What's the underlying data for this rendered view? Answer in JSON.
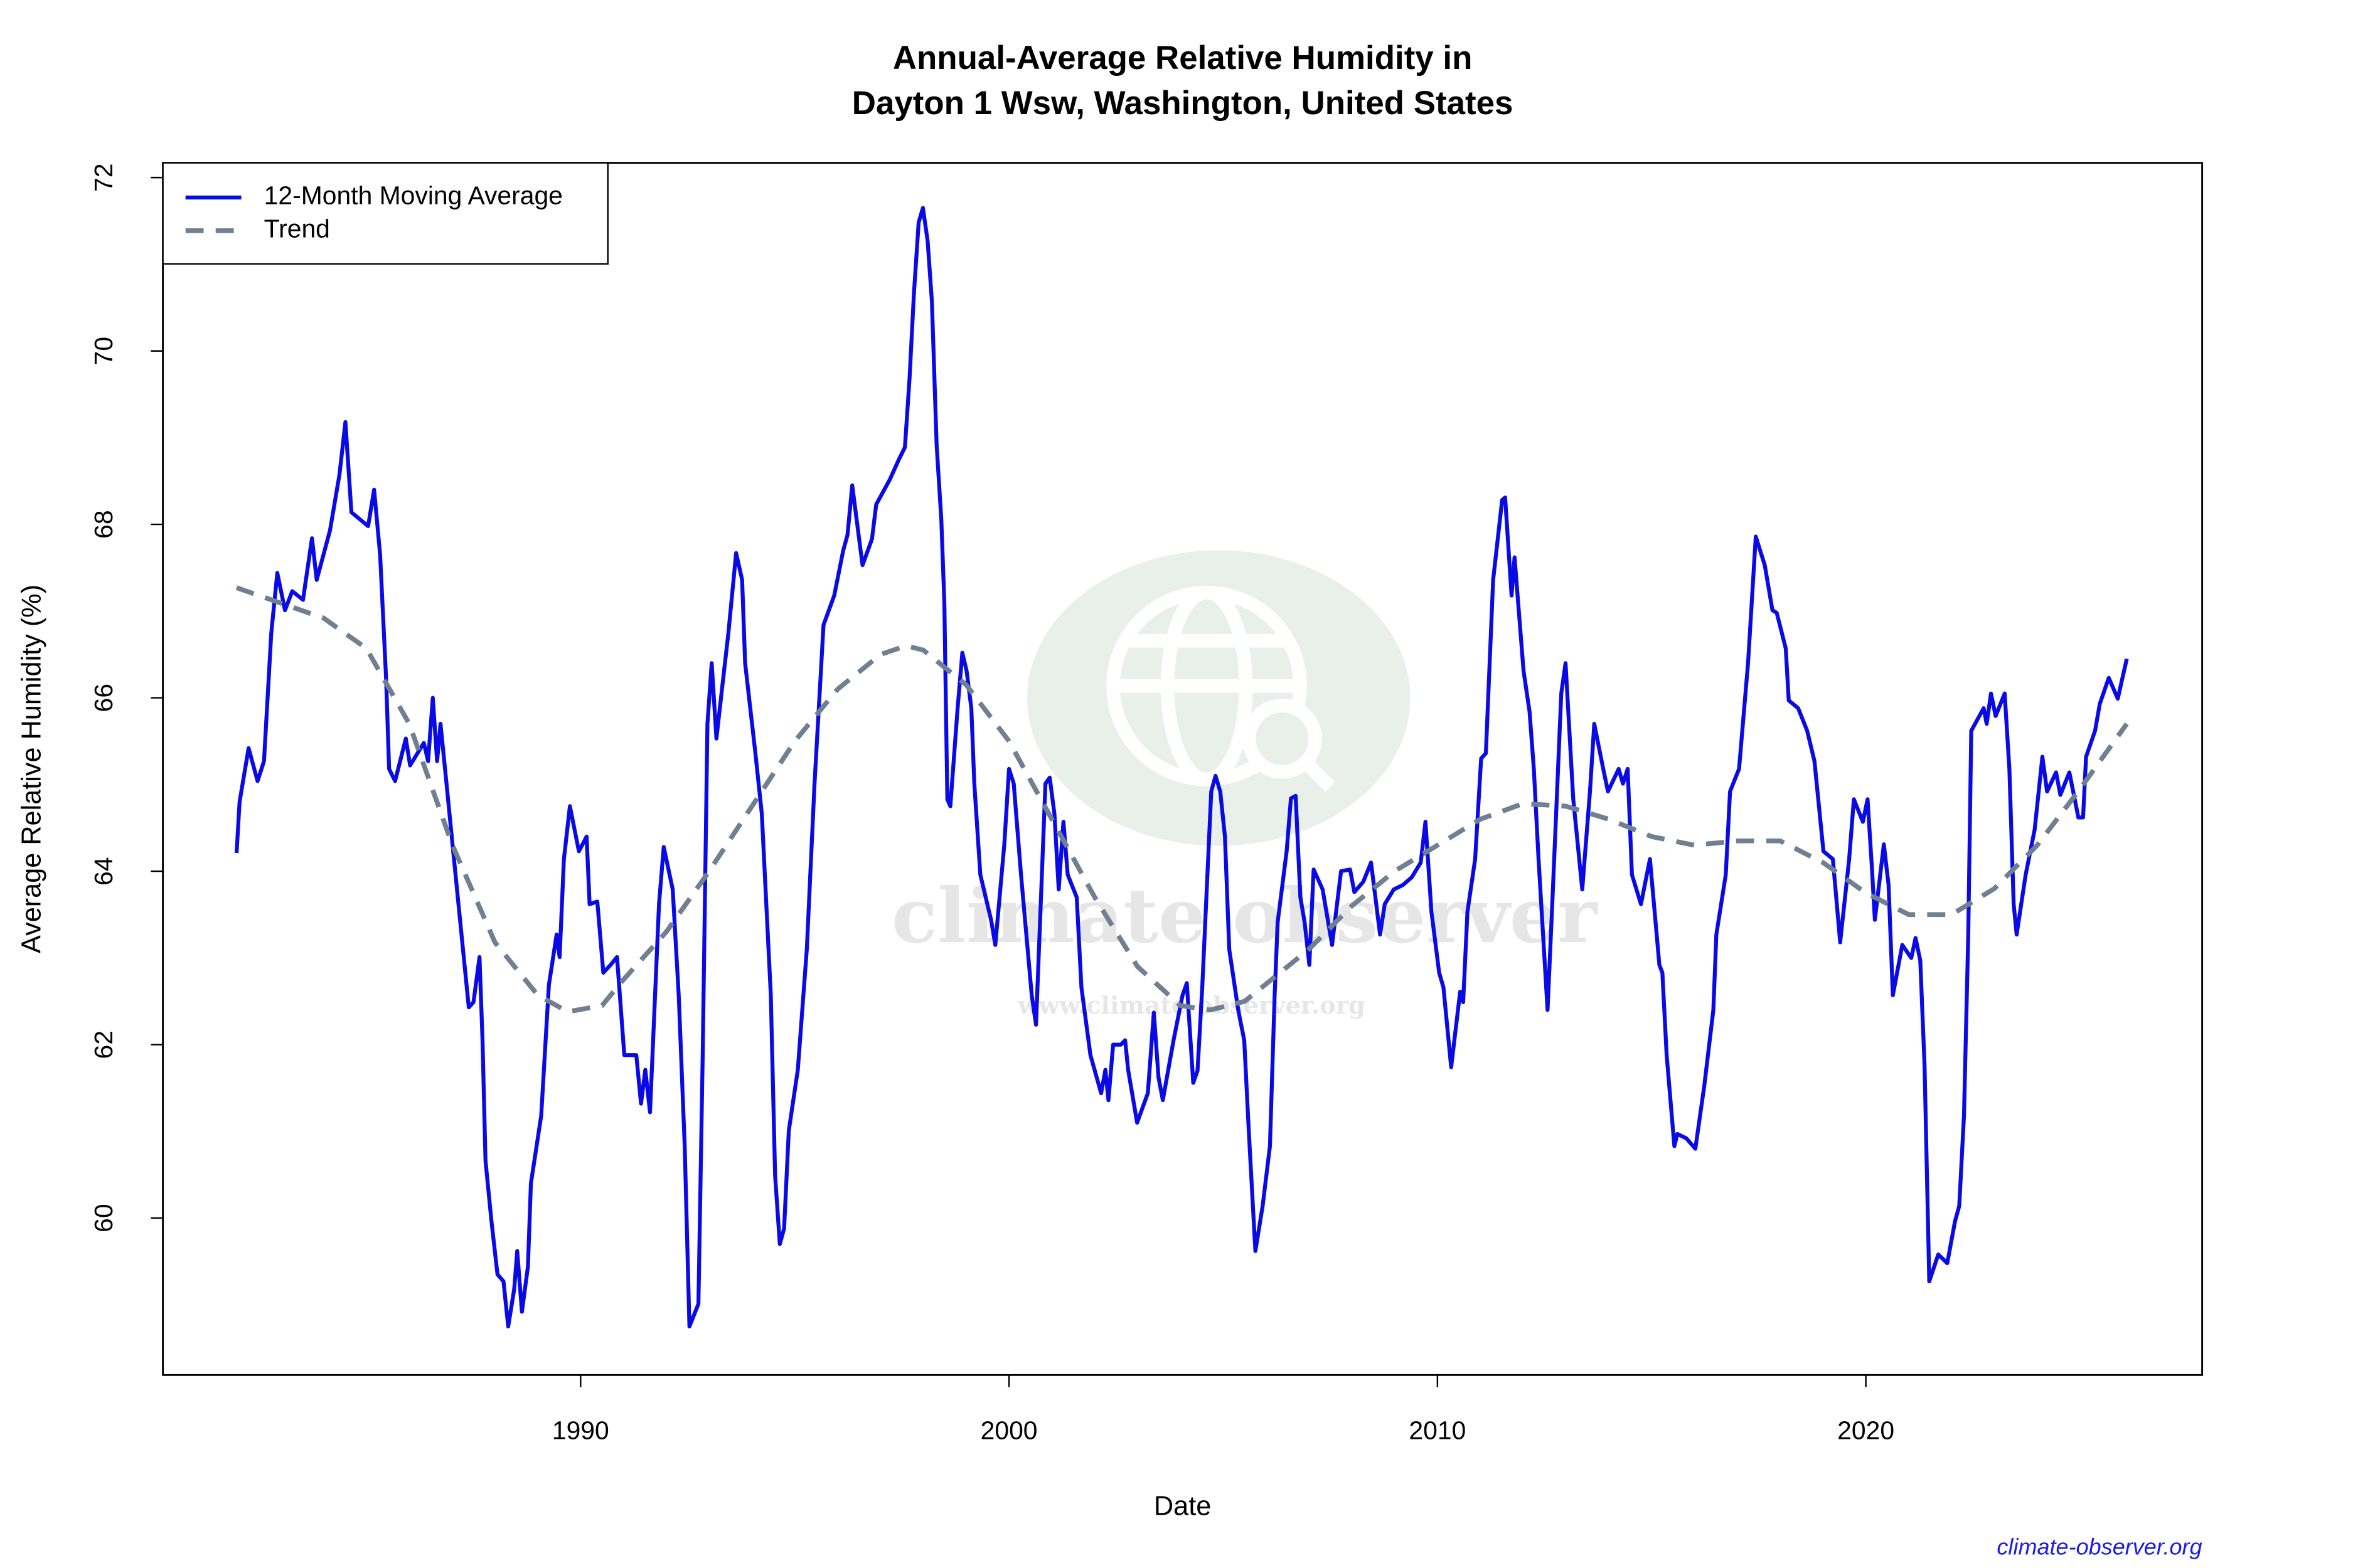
{
  "chart_data": {
    "type": "line",
    "title": [
      "Annual-Average Relative Humidity in",
      "Dayton 1 Wsw, Washington, United States"
    ],
    "x_label": "Date",
    "y_label": "Average Relative Humidity (%)",
    "source": "climate-observer.org",
    "watermark": {
      "name": "climate observer",
      "url": "www.climate-observer.org"
    },
    "xlim": [
      1980.25,
      2027.85
    ],
    "ylim": [
      58.19,
      72.17
    ],
    "xticks": [
      1990,
      2000,
      2010,
      2020
    ],
    "yticks": [
      60,
      62,
      64,
      66,
      68,
      70,
      72
    ],
    "legend": "topleft",
    "series": [
      {
        "name": "12-Month Moving Average",
        "color": "#0a0ae6",
        "line_style": "solid",
        "x": [
          1981.97,
          1982.04,
          1982.25,
          1982.46,
          1982.61,
          1982.78,
          1982.92,
          1983.1,
          1983.27,
          1983.52,
          1983.73,
          1983.84,
          1984.15,
          1984.37,
          1984.51,
          1984.65,
          1985.04,
          1985.18,
          1985.32,
          1985.46,
          1985.53,
          1985.67,
          1985.92,
          1986.02,
          1986.34,
          1986.44,
          1986.55,
          1986.65,
          1986.73,
          1986.87,
          1987.01,
          1987.22,
          1987.39,
          1987.5,
          1987.64,
          1987.71,
          1987.78,
          1987.92,
          1988.06,
          1988.2,
          1988.31,
          1988.45,
          1988.52,
          1988.63,
          1988.77,
          1988.84,
          1989.08,
          1989.26,
          1989.44,
          1989.51,
          1989.61,
          1989.75,
          1989.96,
          1990.14,
          1990.21,
          1990.39,
          1990.53,
          1990.7,
          1990.85,
          1991.02,
          1991.3,
          1991.41,
          1991.51,
          1991.62,
          1991.83,
          1991.94,
          1992.15,
          1992.29,
          1992.43,
          1992.54,
          1992.75,
          1992.85,
          1992.96,
          1993.06,
          1993.17,
          1993.27,
          1993.45,
          1993.63,
          1993.77,
          1993.84,
          1994.08,
          1994.23,
          1994.44,
          1994.54,
          1994.65,
          1994.75,
          1994.86,
          1995.07,
          1995.28,
          1995.46,
          1995.67,
          1995.92,
          1996.13,
          1996.23,
          1996.34,
          1996.58,
          1996.8,
          1996.9,
          1997.22,
          1997.43,
          1997.57,
          1997.68,
          1997.78,
          1997.89,
          1997.99,
          1998.1,
          1998.2,
          1998.31,
          1998.42,
          1998.49,
          1998.56,
          1998.63,
          1998.8,
          1998.91,
          1999.01,
          1999.12,
          1999.19,
          1999.33,
          1999.58,
          1999.68,
          1999.89,
          2000.0,
          2000.11,
          2000.28,
          2000.53,
          2000.63,
          2000.85,
          2000.95,
          2001.06,
          2001.16,
          2001.27,
          2001.37,
          2001.58,
          2001.69,
          2001.9,
          2002.15,
          2002.25,
          2002.32,
          2002.43,
          2002.61,
          2002.71,
          2002.78,
          2002.99,
          2003.24,
          2003.38,
          2003.49,
          2003.59,
          2003.84,
          2004.05,
          2004.15,
          2004.3,
          2004.4,
          2004.51,
          2004.72,
          2004.82,
          2004.93,
          2005.04,
          2005.14,
          2005.35,
          2005.49,
          2005.6,
          2005.75,
          2005.92,
          2006.09,
          2006.2,
          2006.27,
          2006.48,
          2006.58,
          2006.69,
          2006.8,
          2006.9,
          2007.01,
          2007.11,
          2007.32,
          2007.54,
          2007.75,
          2007.96,
          2008.06,
          2008.27,
          2008.45,
          2008.66,
          2008.77,
          2008.98,
          2009.19,
          2009.4,
          2009.61,
          2009.72,
          2009.86,
          2010.04,
          2010.14,
          2010.32,
          2010.53,
          2010.6,
          2010.7,
          2010.88,
          2011.02,
          2011.13,
          2011.3,
          2011.51,
          2011.58,
          2011.73,
          2011.8,
          2012.01,
          2012.15,
          2012.25,
          2012.36,
          2012.57,
          2012.68,
          2012.89,
          2012.99,
          2013.17,
          2013.38,
          2013.56,
          2013.66,
          2013.87,
          2013.98,
          2014.23,
          2014.33,
          2014.44,
          2014.54,
          2014.75,
          2014.96,
          2015.18,
          2015.25,
          2015.35,
          2015.53,
          2015.6,
          2015.81,
          2016.02,
          2016.23,
          2016.44,
          2016.51,
          2016.73,
          2016.83,
          2017.04,
          2017.25,
          2017.43,
          2017.64,
          2017.82,
          2017.92,
          2018.13,
          2018.2,
          2018.42,
          2018.63,
          2018.8,
          2019.01,
          2019.23,
          2019.4,
          2019.61,
          2019.72,
          2019.93,
          2020.04,
          2020.14,
          2020.21,
          2020.42,
          2020.53,
          2020.63,
          2020.85,
          2021.06,
          2021.16,
          2021.27,
          2021.37,
          2021.48,
          2021.69,
          2021.9,
          2022.08,
          2022.18,
          2022.29,
          2022.39,
          2022.46,
          2022.75,
          2022.82,
          2022.92,
          2023.03,
          2023.24,
          2023.35,
          2023.45,
          2023.52,
          2023.73,
          2023.94,
          2024.12,
          2024.23,
          2024.44,
          2024.54,
          2024.75,
          2024.96,
          2025.07,
          2025.14,
          2025.35,
          2025.46,
          2025.67,
          2025.88,
          2026.09
        ],
        "values": [
          64.21,
          64.8,
          65.42,
          65.04,
          65.27,
          66.75,
          67.44,
          67.01,
          67.23,
          67.13,
          67.84,
          67.36,
          67.93,
          68.57,
          69.18,
          68.14,
          67.98,
          68.4,
          67.65,
          66.22,
          65.18,
          65.04,
          65.53,
          65.22,
          65.48,
          65.27,
          66.0,
          65.27,
          65.7,
          65.01,
          64.31,
          63.27,
          62.43,
          62.49,
          63.01,
          62.06,
          60.66,
          59.96,
          59.35,
          59.27,
          58.75,
          59.18,
          59.62,
          58.92,
          59.44,
          60.4,
          61.18,
          62.69,
          63.27,
          63.01,
          64.14,
          64.75,
          64.23,
          64.4,
          63.62,
          63.65,
          62.83,
          62.92,
          63.01,
          61.88,
          61.88,
          61.32,
          61.71,
          61.22,
          63.62,
          64.28,
          63.79,
          62.57,
          60.83,
          58.75,
          59.01,
          61.88,
          65.7,
          66.4,
          65.53,
          65.97,
          66.75,
          67.67,
          67.36,
          66.4,
          65.36,
          64.66,
          62.57,
          60.49,
          59.7,
          59.88,
          61.01,
          61.71,
          63.1,
          65.01,
          66.84,
          67.18,
          67.7,
          67.88,
          68.45,
          67.53,
          67.83,
          68.23,
          68.52,
          68.75,
          68.89,
          69.7,
          70.66,
          71.48,
          71.65,
          71.27,
          70.57,
          68.92,
          68.05,
          67.1,
          64.83,
          64.75,
          65.88,
          66.52,
          66.31,
          65.88,
          65.01,
          63.96,
          63.44,
          63.15,
          64.31,
          65.18,
          65.01,
          63.96,
          62.57,
          62.23,
          65.01,
          65.08,
          64.66,
          63.79,
          64.57,
          63.96,
          63.7,
          62.66,
          61.88,
          61.44,
          61.71,
          61.36,
          62.0,
          62.0,
          62.05,
          61.71,
          61.1,
          61.44,
          62.37,
          61.62,
          61.36,
          62.05,
          62.57,
          62.71,
          61.56,
          61.7,
          62.66,
          64.92,
          65.1,
          64.92,
          64.4,
          63.1,
          62.4,
          62.05,
          60.97,
          59.62,
          60.14,
          60.83,
          62.57,
          63.41,
          64.23,
          64.84,
          64.87,
          63.7,
          63.41,
          62.92,
          64.02,
          63.79,
          63.15,
          64.0,
          64.02,
          63.76,
          63.88,
          64.1,
          63.27,
          63.62,
          63.79,
          63.84,
          63.93,
          64.1,
          64.57,
          63.53,
          62.83,
          62.66,
          61.74,
          62.61,
          62.49,
          63.53,
          64.14,
          65.3,
          65.36,
          67.36,
          68.28,
          68.31,
          67.18,
          67.62,
          66.31,
          65.84,
          65.18,
          64.14,
          62.4,
          63.62,
          66.05,
          66.4,
          64.83,
          63.79,
          64.92,
          65.7,
          65.18,
          64.92,
          65.18,
          65.01,
          65.18,
          63.96,
          63.62,
          64.14,
          62.92,
          62.83,
          61.88,
          60.83,
          60.97,
          60.92,
          60.8,
          61.53,
          62.4,
          63.27,
          63.96,
          64.92,
          65.18,
          66.4,
          67.86,
          67.53,
          67.01,
          66.98,
          66.57,
          65.97,
          65.88,
          65.62,
          65.27,
          64.23,
          64.14,
          63.18,
          64.14,
          64.83,
          64.57,
          64.83,
          64.05,
          63.44,
          64.31,
          63.84,
          62.57,
          63.15,
          63.0,
          63.23,
          62.97,
          61.76,
          59.27,
          59.58,
          59.48,
          59.96,
          60.14,
          61.18,
          63.27,
          65.62,
          65.88,
          65.7,
          66.05,
          65.79,
          66.05,
          65.18,
          63.62,
          63.27,
          63.96,
          64.48,
          65.32,
          64.92,
          65.14,
          64.88,
          65.14,
          64.62,
          64.62,
          65.32,
          65.62,
          65.93,
          66.23,
          65.99,
          66.45
        ]
      },
      {
        "name": "Trend",
        "color": "#708090",
        "line_style": "dashed",
        "x": [
          1981.97,
          1984,
          1985,
          1986,
          1987,
          1988,
          1989,
          1989.7,
          1990.5,
          1991,
          1992,
          1993,
          1994,
          1995,
          1996,
          1997,
          1997.6,
          1998,
          1999,
          2000,
          2001,
          2002,
          2003,
          2004,
          2004.7,
          2005.5,
          2006,
          2007,
          2008,
          2009,
          2010,
          2011,
          2012,
          2013,
          2014,
          2015,
          2016,
          2017,
          2018,
          2019,
          2020,
          2021,
          2022,
          2023,
          2024,
          2025,
          2026.09
        ],
        "values": [
          67.27,
          66.92,
          66.57,
          65.7,
          64.31,
          63.18,
          62.57,
          62.38,
          62.45,
          62.75,
          63.3,
          64.0,
          64.75,
          65.5,
          66.1,
          66.5,
          66.6,
          66.55,
          66.15,
          65.5,
          64.6,
          63.7,
          62.9,
          62.45,
          62.4,
          62.5,
          62.7,
          63.1,
          63.6,
          64.0,
          64.3,
          64.6,
          64.78,
          64.75,
          64.6,
          64.4,
          64.3,
          64.35,
          64.35,
          64.1,
          63.75,
          63.5,
          63.5,
          63.8,
          64.3,
          64.95,
          65.7
        ]
      }
    ]
  }
}
